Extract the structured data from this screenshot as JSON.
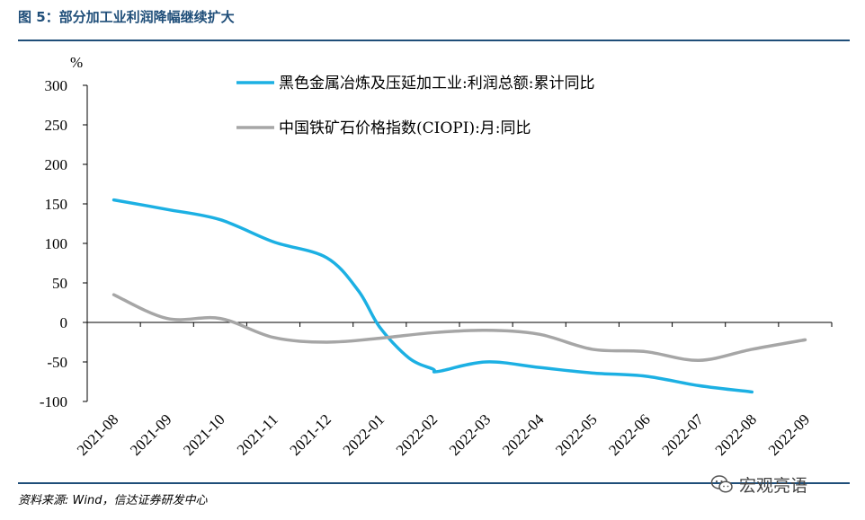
{
  "figure": {
    "title": "图 5：部分加工业利润降幅继续扩大",
    "source": "资料来源: Wind，信达证券研发中心",
    "watermark": "宏观亮语",
    "watermark_icon": "wechat-icon"
  },
  "chart_data": {
    "type": "line",
    "unit": "%",
    "ylim": [
      -100,
      300
    ],
    "yticks": [
      300,
      250,
      200,
      150,
      100,
      50,
      0,
      -50,
      -100
    ],
    "grid": false,
    "legend_position": "top-right",
    "categories": [
      "2021-08",
      "2021-09",
      "2021-10",
      "2021-11",
      "2021-12",
      "2022-01",
      "2022-02",
      "2022-03",
      "2022-04",
      "2022-05",
      "2022-06",
      "2022-07",
      "2022-08",
      "2022-09"
    ],
    "series": [
      {
        "name": "黑色金属冶炼及压延加工业:利润总额:累计同比",
        "color": "#1cb0e3",
        "values": [
          155,
          143,
          130,
          102,
          82,
          null,
          -59,
          -50,
          -57,
          -64,
          -68,
          -80,
          -88,
          null
        ],
        "extra_points": [
          {
            "x": "2021-12",
            "x_offset": 0.6,
            "y": 40
          },
          {
            "x": "2022-01",
            "x_offset": 0,
            "y": -6
          },
          {
            "x": "2022-01",
            "x_offset": 0.55,
            "y": -45
          },
          {
            "x": "2022-02",
            "x_offset": 0.1,
            "y": -62
          }
        ]
      },
      {
        "name": "中国铁矿石价格指数(CIOPI):月:同比",
        "color": "#a6a6a6",
        "values": [
          35,
          5,
          5,
          -19,
          -25,
          -20,
          -13,
          -10,
          -15,
          -34,
          -37,
          -48,
          -34,
          -22
        ]
      }
    ]
  }
}
